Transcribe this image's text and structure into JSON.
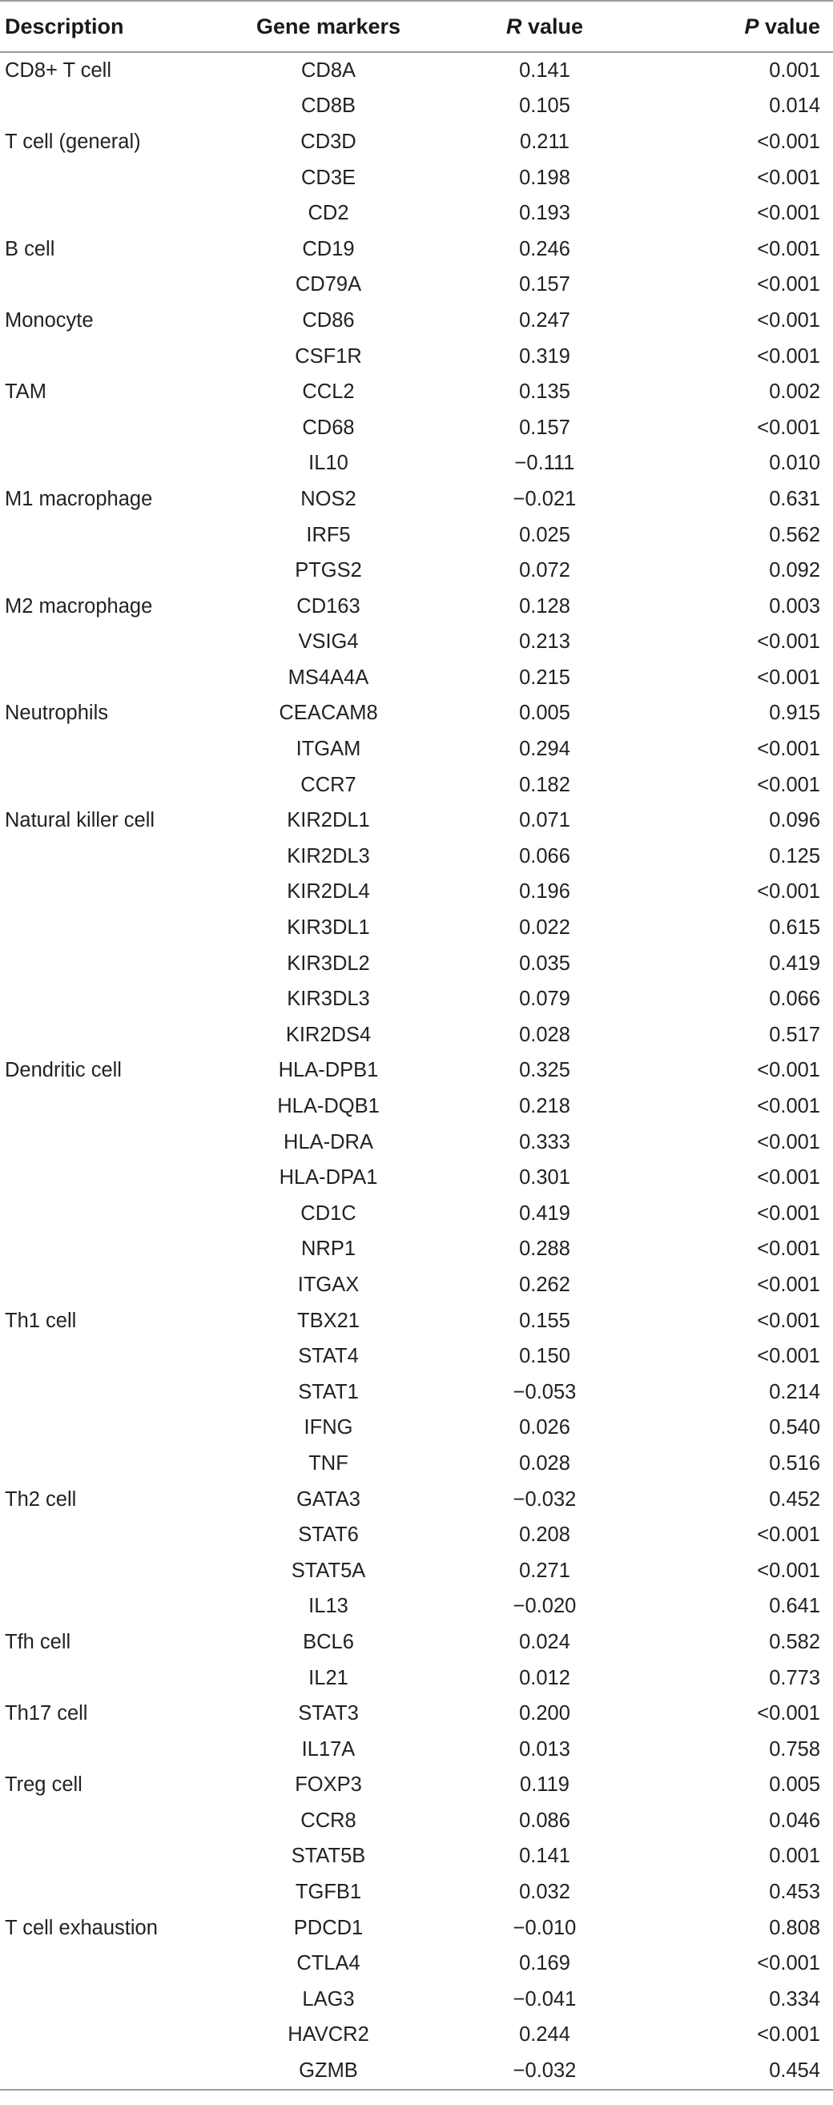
{
  "header": {
    "description": "Description",
    "gene_markers": "Gene markers",
    "r_letter": "R",
    "r_rest": " value",
    "p_letter": "P",
    "p_rest": " value"
  },
  "rows": [
    {
      "description": "CD8+ T cell",
      "gene": "CD8A",
      "r": "0.141",
      "p": "0.001"
    },
    {
      "description": "",
      "gene": "CD8B",
      "r": "0.105",
      "p": "0.014"
    },
    {
      "description": "T cell (general)",
      "gene": "CD3D",
      "r": "0.211",
      "p": "<0.001"
    },
    {
      "description": "",
      "gene": "CD3E",
      "r": "0.198",
      "p": "<0.001"
    },
    {
      "description": "",
      "gene": "CD2",
      "r": "0.193",
      "p": "<0.001"
    },
    {
      "description": "B cell",
      "gene": "CD19",
      "r": "0.246",
      "p": "<0.001"
    },
    {
      "description": "",
      "gene": "CD79A",
      "r": "0.157",
      "p": "<0.001"
    },
    {
      "description": "Monocyte",
      "gene": "CD86",
      "r": "0.247",
      "p": "<0.001"
    },
    {
      "description": "",
      "gene": "CSF1R",
      "r": "0.319",
      "p": "<0.001"
    },
    {
      "description": "TAM",
      "gene": "CCL2",
      "r": "0.135",
      "p": "0.002"
    },
    {
      "description": "",
      "gene": "CD68",
      "r": "0.157",
      "p": "<0.001"
    },
    {
      "description": "",
      "gene": "IL10",
      "r": "−0.111",
      "p": "0.010"
    },
    {
      "description": "M1 macrophage",
      "gene": "NOS2",
      "r": "−0.021",
      "p": "0.631"
    },
    {
      "description": "",
      "gene": "IRF5",
      "r": "0.025",
      "p": "0.562"
    },
    {
      "description": "",
      "gene": "PTGS2",
      "r": "0.072",
      "p": "0.092"
    },
    {
      "description": "M2 macrophage",
      "gene": "CD163",
      "r": "0.128",
      "p": "0.003"
    },
    {
      "description": "",
      "gene": "VSIG4",
      "r": "0.213",
      "p": "<0.001"
    },
    {
      "description": "",
      "gene": "MS4A4A",
      "r": "0.215",
      "p": "<0.001"
    },
    {
      "description": "Neutrophils",
      "gene": "CEACAM8",
      "r": "0.005",
      "p": "0.915"
    },
    {
      "description": "",
      "gene": "ITGAM",
      "r": "0.294",
      "p": "<0.001"
    },
    {
      "description": "",
      "gene": "CCR7",
      "r": "0.182",
      "p": "<0.001"
    },
    {
      "description": "Natural killer cell",
      "gene": "KIR2DL1",
      "r": "0.071",
      "p": "0.096"
    },
    {
      "description": "",
      "gene": "KIR2DL3",
      "r": "0.066",
      "p": "0.125"
    },
    {
      "description": "",
      "gene": "KIR2DL4",
      "r": "0.196",
      "p": "<0.001"
    },
    {
      "description": "",
      "gene": "KIR3DL1",
      "r": "0.022",
      "p": "0.615"
    },
    {
      "description": "",
      "gene": "KIR3DL2",
      "r": "0.035",
      "p": "0.419"
    },
    {
      "description": "",
      "gene": "KIR3DL3",
      "r": "0.079",
      "p": "0.066"
    },
    {
      "description": "",
      "gene": "KIR2DS4",
      "r": "0.028",
      "p": "0.517"
    },
    {
      "description": "Dendritic cell",
      "gene": "HLA-DPB1",
      "r": "0.325",
      "p": "<0.001"
    },
    {
      "description": "",
      "gene": "HLA-DQB1",
      "r": "0.218",
      "p": "<0.001"
    },
    {
      "description": "",
      "gene": "HLA-DRA",
      "r": "0.333",
      "p": "<0.001"
    },
    {
      "description": "",
      "gene": "HLA-DPA1",
      "r": "0.301",
      "p": "<0.001"
    },
    {
      "description": "",
      "gene": "CD1C",
      "r": "0.419",
      "p": "<0.001"
    },
    {
      "description": "",
      "gene": "NRP1",
      "r": "0.288",
      "p": "<0.001"
    },
    {
      "description": "",
      "gene": "ITGAX",
      "r": "0.262",
      "p": "<0.001"
    },
    {
      "description": "Th1 cell",
      "gene": "TBX21",
      "r": "0.155",
      "p": "<0.001"
    },
    {
      "description": "",
      "gene": "STAT4",
      "r": "0.150",
      "p": "<0.001"
    },
    {
      "description": "",
      "gene": "STAT1",
      "r": "−0.053",
      "p": "0.214"
    },
    {
      "description": "",
      "gene": "IFNG",
      "r": "0.026",
      "p": "0.540"
    },
    {
      "description": "",
      "gene": "TNF",
      "r": "0.028",
      "p": "0.516"
    },
    {
      "description": "Th2 cell",
      "gene": "GATA3",
      "r": "−0.032",
      "p": "0.452"
    },
    {
      "description": "",
      "gene": "STAT6",
      "r": "0.208",
      "p": "<0.001"
    },
    {
      "description": "",
      "gene": "STAT5A",
      "r": "0.271",
      "p": "<0.001"
    },
    {
      "description": "",
      "gene": "IL13",
      "r": "−0.020",
      "p": "0.641"
    },
    {
      "description": "Tfh cell",
      "gene": "BCL6",
      "r": "0.024",
      "p": "0.582"
    },
    {
      "description": "",
      "gene": "IL21",
      "r": "0.012",
      "p": "0.773"
    },
    {
      "description": "Th17 cell",
      "gene": "STAT3",
      "r": "0.200",
      "p": "<0.001"
    },
    {
      "description": "",
      "gene": "IL17A",
      "r": "0.013",
      "p": "0.758"
    },
    {
      "description": "Treg cell",
      "gene": "FOXP3",
      "r": "0.119",
      "p": "0.005"
    },
    {
      "description": "",
      "gene": "CCR8",
      "r": "0.086",
      "p": "0.046"
    },
    {
      "description": "",
      "gene": "STAT5B",
      "r": "0.141",
      "p": "0.001"
    },
    {
      "description": "",
      "gene": "TGFB1",
      "r": "0.032",
      "p": "0.453"
    },
    {
      "description": "T cell exhaustion",
      "gene": "PDCD1",
      "r": "−0.010",
      "p": "0.808"
    },
    {
      "description": "",
      "gene": "CTLA4",
      "r": "0.169",
      "p": "<0.001"
    },
    {
      "description": "",
      "gene": "LAG3",
      "r": "−0.041",
      "p": "0.334"
    },
    {
      "description": "",
      "gene": "HAVCR2",
      "r": "0.244",
      "p": "<0.001"
    },
    {
      "description": "",
      "gene": "GZMB",
      "r": "−0.032",
      "p": "0.454"
    }
  ]
}
